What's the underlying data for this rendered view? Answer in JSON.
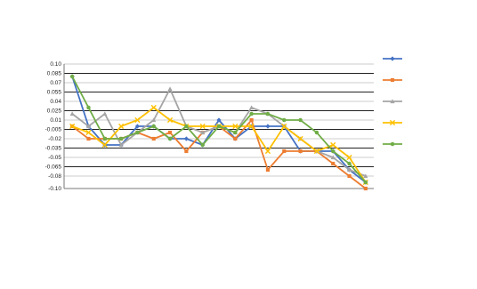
{
  "chart_data": {
    "type": "line",
    "title_line_1": "",
    "title_line_2": "",
    "xlabel": "",
    "ylabel": "",
    "ylim": [
      -0.1,
      0.1
    ],
    "y_ticks": [
      0.1,
      0.085,
      0.07,
      0.055,
      0.04,
      0.025,
      0.01,
      -0.005,
      -0.02,
      -0.035,
      -0.05,
      -0.065,
      -0.08,
      -0.1
    ],
    "categories": [
      "",
      "",
      "",
      "",
      "",
      "",
      "",
      "",
      "",
      "",
      "",
      "",
      "",
      "",
      "",
      "",
      "",
      "",
      ""
    ],
    "legend_position": "right",
    "series": [
      {
        "name": "",
        "color": "#4472c4",
        "marker": "diamond",
        "values": [
          0.08,
          0.0,
          -0.03,
          -0.03,
          0.0,
          0.0,
          -0.02,
          -0.02,
          -0.03,
          0.01,
          -0.02,
          0.0,
          0.0,
          0.0,
          -0.04,
          -0.04,
          -0.04,
          -0.07,
          -0.09
        ]
      },
      {
        "name": "",
        "color": "#ed7d31",
        "marker": "square",
        "values": [
          0.0,
          -0.02,
          -0.02,
          -0.02,
          -0.01,
          -0.02,
          -0.01,
          -0.04,
          -0.01,
          0.0,
          -0.02,
          0.01,
          -0.07,
          -0.04,
          -0.04,
          -0.04,
          -0.06,
          -0.08,
          -0.1
        ]
      },
      {
        "name": "",
        "color": "#a5a5a5",
        "marker": "triangle",
        "values": [
          0.02,
          0.0,
          0.02,
          -0.03,
          -0.01,
          0.01,
          0.06,
          0.0,
          -0.01,
          0.0,
          -0.01,
          0.03,
          0.02,
          0.0,
          -0.02,
          -0.04,
          -0.05,
          -0.07,
          -0.08
        ]
      },
      {
        "name": "",
        "color": "#ffc000",
        "marker": "x",
        "values": [
          0.0,
          -0.01,
          -0.03,
          0.0,
          0.01,
          0.03,
          0.01,
          0.0,
          0.0,
          0.0,
          0.0,
          0.0,
          -0.04,
          0.0,
          -0.02,
          -0.04,
          -0.03,
          -0.05,
          -0.09
        ]
      },
      {
        "name": "",
        "color": "#70ad47",
        "marker": "circle",
        "values": [
          0.08,
          0.03,
          -0.02,
          -0.02,
          -0.01,
          0.0,
          -0.02,
          0.0,
          -0.03,
          0.0,
          -0.01,
          0.02,
          0.02,
          0.01,
          0.01,
          -0.01,
          -0.04,
          -0.06,
          -0.09
        ]
      }
    ]
  }
}
